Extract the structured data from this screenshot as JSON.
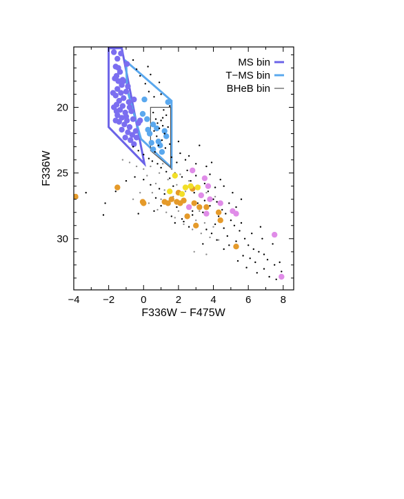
{
  "chart_data": {
    "type": "scatter",
    "title": "",
    "xlabel": "F336W − F475W",
    "ylabel": "F336W",
    "xlim": [
      -4,
      8.6
    ],
    "ylim": [
      33.9,
      15.4
    ],
    "y_inverted": true,
    "grid": false,
    "x_ticks": [
      -4,
      -2,
      0,
      2,
      4,
      6,
      8
    ],
    "x_tick_labels": [
      "−4",
      "−2",
      "0",
      "2",
      "4",
      "6",
      "8"
    ],
    "y_ticks": [
      20,
      25,
      30
    ],
    "y_tick_labels": [
      "20",
      "25",
      "30"
    ],
    "legend_position": "top-right",
    "legend": [
      {
        "label": "MS bin",
        "color": "#6b63e8"
      },
      {
        "label": "T−MS bin",
        "color": "#5aa8ee"
      },
      {
        "label": "BHeB bin",
        "color": "#555555"
      }
    ],
    "bins": [
      {
        "name": "MS bin",
        "color": "#6b63e8",
        "polygon": [
          [
            -2.0,
            15.5
          ],
          [
            -1.25,
            15.5
          ],
          [
            0.05,
            24.3
          ],
          [
            -2.0,
            21.5
          ]
        ]
      },
      {
        "name": "T−MS bin",
        "color": "#5aa8ee",
        "polygon": [
          [
            -1.0,
            16.5
          ],
          [
            1.6,
            19.5
          ],
          [
            1.6,
            24.6
          ],
          [
            -0.15,
            22.4
          ],
          [
            -0.95,
            18.6
          ]
        ]
      },
      {
        "name": "BHeB bin",
        "color": "#555555",
        "polygon": [
          [
            0.4,
            20.0
          ],
          [
            1.55,
            20.0
          ],
          [
            1.55,
            24.6
          ],
          [
            0.4,
            23.3
          ]
        ]
      }
    ],
    "series": [
      {
        "marker": "large-dot",
        "color": "#7b6ef0",
        "points": [
          [
            -1.7,
            15.8
          ],
          [
            -1.5,
            16.3
          ],
          [
            -1.6,
            16.9
          ],
          [
            -1.35,
            17.3
          ],
          [
            -1.55,
            17.6
          ],
          [
            -1.45,
            18.0
          ],
          [
            -1.25,
            18.3
          ],
          [
            -1.5,
            18.6
          ],
          [
            -1.3,
            18.9
          ],
          [
            -1.6,
            19.1
          ],
          [
            -1.15,
            19.3
          ],
          [
            -1.4,
            19.5
          ],
          [
            -1.55,
            19.8
          ],
          [
            -1.2,
            19.9
          ],
          [
            -1.35,
            20.2
          ],
          [
            -1.05,
            20.4
          ],
          [
            -1.5,
            20.6
          ],
          [
            -1.25,
            20.8
          ],
          [
            -0.95,
            21.0
          ],
          [
            -1.4,
            21.1
          ],
          [
            -1.1,
            21.3
          ],
          [
            -0.8,
            21.5
          ],
          [
            -1.25,
            21.7
          ],
          [
            -0.9,
            21.9
          ],
          [
            -0.65,
            22.1
          ],
          [
            -1.05,
            22.3
          ],
          [
            -0.75,
            22.5
          ],
          [
            -0.45,
            21.8
          ],
          [
            -0.55,
            22.8
          ],
          [
            -0.3,
            21.2
          ],
          [
            -1.45,
            17.0
          ],
          [
            -1.2,
            17.9
          ],
          [
            -1.0,
            18.8
          ],
          [
            -0.85,
            19.6
          ],
          [
            -0.7,
            20.3
          ],
          [
            -0.6,
            20.9
          ],
          [
            -1.6,
            21.0
          ],
          [
            -1.7,
            20.0
          ],
          [
            -1.75,
            18.9
          ],
          [
            -1.65,
            17.8
          ],
          [
            -0.4,
            22.3
          ],
          [
            -0.2,
            21.0
          ],
          [
            -0.95,
            16.7
          ],
          [
            -1.3,
            15.9
          ],
          [
            -1.55,
            20.3
          ],
          [
            -1.0,
            20.7
          ],
          [
            -0.8,
            20.0
          ],
          [
            -0.9,
            18.4
          ],
          [
            -1.15,
            18.0
          ],
          [
            -0.55,
            19.4
          ]
        ]
      },
      {
        "marker": "large-dot",
        "color": "#5aa8ee",
        "points": [
          [
            0.05,
            19.4
          ],
          [
            0.2,
            20.9
          ],
          [
            0.55,
            21.3
          ],
          [
            0.35,
            22.0
          ],
          [
            0.85,
            22.6
          ],
          [
            1.2,
            21.8
          ],
          [
            0.55,
            23.2
          ],
          [
            0.95,
            22.9
          ],
          [
            1.4,
            19.6
          ],
          [
            0.25,
            21.7
          ],
          [
            1.05,
            23.4
          ],
          [
            0.75,
            21.6
          ],
          [
            -0.05,
            20.5
          ],
          [
            0.45,
            22.7
          ],
          [
            1.3,
            22.2
          ]
        ]
      },
      {
        "marker": "small-dot",
        "color": "#000000",
        "points": [
          [
            0.7,
            20.9
          ],
          [
            0.8,
            21.2
          ],
          [
            1.0,
            21.0
          ],
          [
            0.9,
            21.6
          ],
          [
            1.1,
            21.4
          ],
          [
            0.6,
            21.8
          ],
          [
            1.2,
            22.0
          ],
          [
            0.75,
            22.2
          ],
          [
            1.05,
            22.5
          ],
          [
            0.85,
            22.9
          ],
          [
            1.25,
            23.1
          ],
          [
            0.65,
            23.4
          ],
          [
            1.3,
            20.6
          ],
          [
            0.55,
            20.4
          ],
          [
            1.15,
            20.2
          ],
          [
            -0.2,
            17.6
          ],
          [
            0.1,
            18.2
          ],
          [
            -0.4,
            17.1
          ],
          [
            0.3,
            18.8
          ],
          [
            0.6,
            19.2
          ],
          [
            1.0,
            19.0
          ],
          [
            -0.6,
            16.4
          ],
          [
            0.4,
            17.5
          ],
          [
            0.9,
            18.1
          ],
          [
            1.1,
            20.8
          ],
          [
            1.4,
            21.5
          ],
          [
            1.5,
            22.8
          ],
          [
            1.6,
            23.8
          ],
          [
            1.9,
            24.2
          ],
          [
            2.1,
            23.5
          ],
          [
            1.8,
            25.0
          ],
          [
            2.2,
            25.3
          ],
          [
            2.5,
            24.8
          ],
          [
            2.7,
            25.6
          ],
          [
            3.0,
            25.2
          ],
          [
            3.2,
            26.0
          ],
          [
            3.5,
            25.8
          ],
          [
            2.4,
            26.2
          ],
          [
            2.9,
            26.5
          ],
          [
            3.3,
            26.8
          ],
          [
            3.7,
            26.4
          ],
          [
            4.0,
            27.0
          ],
          [
            3.8,
            27.5
          ],
          [
            4.2,
            27.2
          ],
          [
            4.5,
            27.8
          ],
          [
            3.1,
            27.3
          ],
          [
            2.6,
            27.7
          ],
          [
            3.4,
            28.0
          ],
          [
            4.3,
            28.3
          ],
          [
            4.7,
            28.1
          ],
          [
            5.0,
            28.6
          ],
          [
            4.1,
            28.9
          ],
          [
            4.6,
            29.2
          ],
          [
            5.2,
            29.0
          ],
          [
            5.5,
            29.4
          ],
          [
            3.9,
            29.6
          ],
          [
            4.8,
            29.8
          ],
          [
            5.3,
            30.2
          ],
          [
            5.8,
            30.0
          ],
          [
            6.0,
            30.5
          ],
          [
            6.3,
            30.8
          ],
          [
            6.6,
            31.0
          ],
          [
            6.9,
            31.2
          ],
          [
            7.1,
            31.6
          ],
          [
            7.5,
            32.0
          ],
          [
            6.4,
            31.8
          ],
          [
            5.7,
            31.3
          ],
          [
            7.8,
            31.8
          ],
          [
            7.9,
            32.5
          ],
          [
            7.2,
            32.9
          ],
          [
            6.2,
            29.6
          ],
          [
            5.6,
            28.8
          ],
          [
            6.8,
            30.0
          ],
          [
            2.3,
            27.0
          ],
          [
            2.0,
            26.5
          ],
          [
            1.7,
            26.0
          ],
          [
            1.5,
            25.4
          ],
          [
            1.3,
            24.9
          ],
          [
            1.0,
            24.6
          ],
          [
            0.8,
            24.3
          ],
          [
            0.5,
            24.1
          ],
          [
            0.3,
            23.9
          ],
          [
            0.0,
            23.6
          ],
          [
            -0.3,
            23.3
          ],
          [
            -0.6,
            23.0
          ],
          [
            3.6,
            24.5
          ],
          [
            4.4,
            25.5
          ],
          [
            3.9,
            24.2
          ],
          [
            5.1,
            26.5
          ],
          [
            4.9,
            27.3
          ],
          [
            2.8,
            28.2
          ],
          [
            3.0,
            28.9
          ],
          [
            2.2,
            28.5
          ],
          [
            1.9,
            27.6
          ],
          [
            1.6,
            27.1
          ],
          [
            1.2,
            26.6
          ],
          [
            0.9,
            26.2
          ],
          [
            0.4,
            25.9
          ],
          [
            0.0,
            25.5
          ],
          [
            -0.5,
            25.3
          ],
          [
            -1.0,
            25.6
          ],
          [
            -1.6,
            26.4
          ],
          [
            -2.2,
            27.3
          ],
          [
            -2.3,
            28.2
          ],
          [
            -3.3,
            26.5
          ],
          [
            -3.8,
            26.9
          ],
          [
            -0.3,
            28.1
          ],
          [
            0.6,
            27.9
          ],
          [
            1.8,
            28.8
          ],
          [
            2.6,
            29.1
          ],
          [
            3.6,
            29.3
          ],
          [
            4.2,
            30.1
          ],
          [
            5.4,
            31.7
          ],
          [
            6.9,
            32.3
          ],
          [
            7.6,
            33.1
          ],
          [
            6.1,
            31.5
          ],
          [
            4.6,
            30.8
          ],
          [
            7.4,
            30.4
          ],
          [
            5.9,
            32.2
          ],
          [
            6.5,
            32.6
          ],
          [
            3.2,
            22.9
          ],
          [
            2.0,
            22.6
          ],
          [
            2.6,
            23.7
          ],
          [
            1.5,
            19.9
          ],
          [
            0.25,
            16.9
          ],
          [
            3.0,
            24.3
          ],
          [
            4.1,
            26.1
          ],
          [
            3.5,
            27.1
          ],
          [
            2.8,
            27.9
          ],
          [
            2.3,
            28.7
          ],
          [
            1.6,
            28.3
          ],
          [
            1.0,
            27.5
          ],
          [
            0.7,
            26.9
          ],
          [
            2.4,
            24.0
          ],
          [
            3.8,
            25.1
          ],
          [
            4.6,
            26.0
          ],
          [
            5.6,
            27.0
          ],
          [
            5.3,
            27.6
          ],
          [
            4.9,
            30.5
          ],
          [
            3.4,
            30.4
          ],
          [
            6.7,
            29.1
          ]
        ]
      },
      {
        "marker": "small-dot",
        "color": "#8a8a8a",
        "points": [
          [
            0.4,
            24.5
          ],
          [
            0.9,
            25.0
          ],
          [
            1.4,
            25.5
          ],
          [
            1.9,
            25.9
          ],
          [
            2.4,
            26.4
          ],
          [
            0.2,
            25.2
          ],
          [
            0.7,
            25.8
          ],
          [
            1.2,
            26.3
          ],
          [
            1.7,
            26.8
          ],
          [
            2.2,
            27.2
          ],
          [
            2.7,
            27.5
          ],
          [
            3.2,
            27.9
          ],
          [
            0.5,
            26.5
          ],
          [
            1.0,
            27.0
          ],
          [
            1.5,
            27.4
          ],
          [
            2.0,
            27.9
          ],
          [
            2.5,
            28.3
          ],
          [
            3.0,
            28.6
          ],
          [
            3.5,
            28.8
          ],
          [
            4.0,
            29.1
          ],
          [
            0.0,
            24.7
          ],
          [
            -0.4,
            24.5
          ],
          [
            -0.8,
            24.2
          ],
          [
            -1.2,
            24.0
          ],
          [
            1.1,
            24.3
          ],
          [
            1.6,
            24.7
          ],
          [
            2.1,
            25.1
          ],
          [
            2.6,
            25.6
          ],
          [
            3.1,
            26.1
          ],
          [
            3.6,
            26.5
          ],
          [
            4.1,
            26.8
          ],
          [
            1.3,
            28.0
          ],
          [
            1.8,
            28.4
          ],
          [
            2.3,
            28.9
          ],
          [
            2.8,
            29.3
          ],
          [
            3.3,
            29.6
          ],
          [
            3.8,
            29.9
          ],
          [
            4.3,
            30.1
          ],
          [
            0.3,
            27.3
          ],
          [
            0.8,
            27.8
          ],
          [
            -0.2,
            26.5
          ],
          [
            -0.6,
            27.0
          ],
          [
            2.9,
            31.0
          ],
          [
            3.6,
            31.2
          ]
        ]
      },
      {
        "marker": "large-dot",
        "color": "#e59a2a",
        "points": [
          [
            -3.9,
            26.8
          ],
          [
            -1.5,
            26.1
          ],
          [
            -0.05,
            27.2
          ],
          [
            0.0,
            27.3
          ],
          [
            1.2,
            27.2
          ],
          [
            1.6,
            27.0
          ],
          [
            1.9,
            27.2
          ],
          [
            2.0,
            26.5
          ],
          [
            2.3,
            27.1
          ],
          [
            2.9,
            27.3
          ],
          [
            3.2,
            27.6
          ],
          [
            3.6,
            27.6
          ],
          [
            4.3,
            28.0
          ],
          [
            4.4,
            28.6
          ],
          [
            3.0,
            29.0
          ],
          [
            2.5,
            28.3
          ],
          [
            5.3,
            30.6
          ],
          [
            1.4,
            27.3
          ],
          [
            2.1,
            27.3
          ],
          [
            2.8,
            26.2
          ]
        ]
      },
      {
        "marker": "large-dot",
        "color": "#f2df28",
        "points": [
          [
            1.8,
            25.2
          ],
          [
            2.4,
            26.1
          ],
          [
            2.7,
            26.0
          ],
          [
            3.1,
            26.1
          ],
          [
            2.2,
            26.6
          ],
          [
            1.5,
            26.4
          ]
        ]
      },
      {
        "marker": "large-dot",
        "color": "#e08ce8",
        "points": [
          [
            2.8,
            24.8
          ],
          [
            3.5,
            25.4
          ],
          [
            3.3,
            26.7
          ],
          [
            3.8,
            27.0
          ],
          [
            4.4,
            27.3
          ],
          [
            3.6,
            28.1
          ],
          [
            5.1,
            27.9
          ],
          [
            5.3,
            28.1
          ],
          [
            7.5,
            29.7
          ],
          [
            7.9,
            32.9
          ],
          [
            2.6,
            27.6
          ],
          [
            3.7,
            26.0
          ]
        ]
      }
    ]
  }
}
